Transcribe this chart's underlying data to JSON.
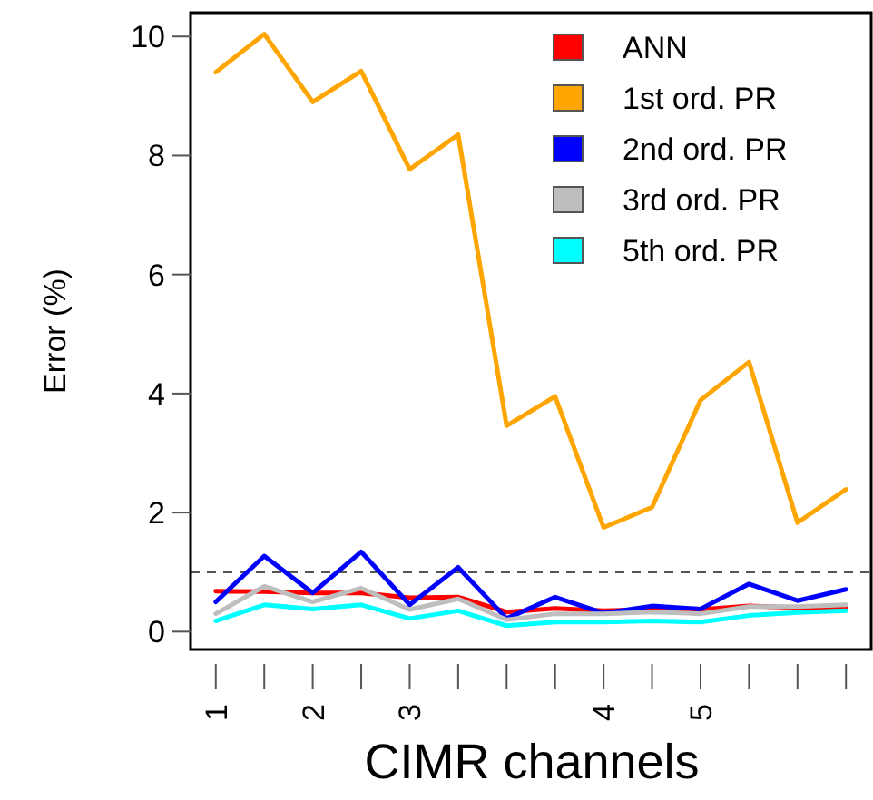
{
  "chart_data": {
    "type": "line",
    "xlabel": "CIMR channels",
    "ylabel": "Error (%)",
    "categories": [
      "1",
      null,
      "2",
      null,
      "3",
      null,
      null,
      null,
      "4",
      null,
      "5",
      null,
      null,
      null
    ],
    "ylim": [
      -0.3,
      10.4
    ],
    "yticks": [
      0,
      2,
      4,
      6,
      8,
      10
    ],
    "series": [
      {
        "name": "ANN",
        "color": "#ff0000",
        "values": [
          0.68,
          0.67,
          0.65,
          0.65,
          0.57,
          0.58,
          0.33,
          0.39,
          0.35,
          0.37,
          0.37,
          0.43,
          0.4,
          0.4
        ]
      },
      {
        "name": "1st ord. PR",
        "color": "#ffa500",
        "values": [
          9.4,
          10.04,
          8.9,
          9.42,
          7.77,
          8.35,
          3.46,
          3.95,
          1.75,
          2.09,
          3.89,
          4.53,
          1.83,
          2.39
        ]
      },
      {
        "name": "2nd ord. PR",
        "color": "#0000ff",
        "values": [
          0.5,
          1.27,
          0.65,
          1.34,
          0.45,
          1.08,
          0.22,
          0.58,
          0.31,
          0.43,
          0.38,
          0.8,
          0.52,
          0.71
        ]
      },
      {
        "name": "3rd ord. PR",
        "color": "#bebebe",
        "values": [
          0.3,
          0.76,
          0.5,
          0.73,
          0.37,
          0.55,
          0.2,
          0.3,
          0.3,
          0.33,
          0.3,
          0.42,
          0.42,
          0.45
        ]
      },
      {
        "name": "5th ord. PR",
        "color": "#00ffff",
        "values": [
          0.18,
          0.45,
          0.38,
          0.45,
          0.22,
          0.35,
          0.1,
          0.16,
          0.16,
          0.18,
          0.16,
          0.27,
          0.32,
          0.35
        ]
      }
    ],
    "ref_lines": [
      {
        "axis": "y",
        "value": 1,
        "color": "#555555",
        "line_style": "dashed"
      }
    ],
    "grid": false,
    "legend": "top right",
    "marker": "none",
    "line_style": "solid"
  }
}
